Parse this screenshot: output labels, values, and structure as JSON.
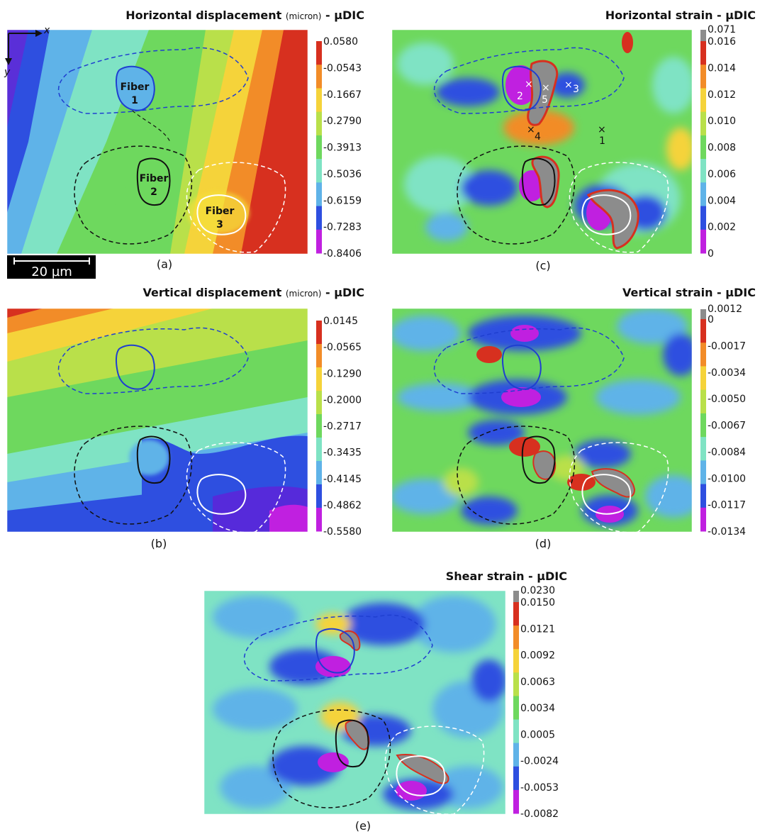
{
  "panels": [
    {
      "id": "a",
      "title_main": "Horizontal displacement ",
      "title_unit": "(micron)",
      "title_suffix": " - µDIC",
      "caption": "(a)",
      "colorbar_ticks": [
        "0.0580",
        "-0.0543",
        "-0.1667",
        "-0.2790",
        "-0.3913",
        "-0.5036",
        "-0.6159",
        "-0.7283",
        "-0.8406"
      ],
      "colorbar_colors": [
        "#d7301f",
        "#f28c28",
        "#f5d33a",
        "#b9e04a",
        "#6ed85e",
        "#7fe3c4",
        "#5fb3e8",
        "#2e4fe0",
        "#c020e0"
      ],
      "fiber_labels": [
        {
          "name": "Fiber",
          "num": "1"
        },
        {
          "name": "Fiber",
          "num": "2"
        },
        {
          "name": "Fiber",
          "num": "3"
        }
      ],
      "axis_x": "x",
      "axis_y": "y",
      "scale_bar": "20 µm"
    },
    {
      "id": "b",
      "title_main": "Vertical displacement ",
      "title_unit": "(micron)",
      "title_suffix": " - µDIC",
      "caption": "(b)",
      "colorbar_ticks": [
        "0.0145",
        "-0.0565",
        "-0.1290",
        "-0.2000",
        "-0.2717",
        "-0.3435",
        "-0.4145",
        "-0.4862",
        "-0.5580"
      ],
      "colorbar_colors": [
        "#d7301f",
        "#f28c28",
        "#f5d33a",
        "#b9e04a",
        "#6ed85e",
        "#7fe3c4",
        "#5fb3e8",
        "#2e4fe0",
        "#c020e0"
      ]
    },
    {
      "id": "c",
      "title_main": "Horizontal strain",
      "title_suffix": " - µDIC",
      "caption": "(c)",
      "colorbar_top": "0.071",
      "colorbar_ticks": [
        "0.016",
        "0.014",
        "0.012",
        "0.010",
        "0.008",
        "0.006",
        "0.004",
        "0.002",
        "0"
      ],
      "colorbar_colors": [
        "#d7301f",
        "#f28c28",
        "#f5d33a",
        "#b9e04a",
        "#6ed85e",
        "#7fe3c4",
        "#5fb3e8",
        "#2e4fe0",
        "#c020e0"
      ],
      "point_labels": [
        "2",
        "5",
        "3",
        "4",
        "1"
      ]
    },
    {
      "id": "d",
      "title_main": "Vertical strain",
      "title_suffix": " - µDIC",
      "caption": "(d)",
      "colorbar_top": "0.0012",
      "colorbar_ticks": [
        "0",
        "-0.0017",
        "-0.0034",
        "-0.0050",
        "-0.0067",
        "-0.0084",
        "-0.0100",
        "-0.0117",
        "-0.0134"
      ],
      "colorbar_colors": [
        "#d7301f",
        "#f28c28",
        "#f5d33a",
        "#b9e04a",
        "#6ed85e",
        "#7fe3c4",
        "#5fb3e8",
        "#2e4fe0",
        "#c020e0"
      ]
    },
    {
      "id": "e",
      "title_main": "Shear strain",
      "title_suffix": " - µDIC",
      "caption": "(e)",
      "colorbar_top": "0.0230",
      "colorbar_ticks": [
        "0.0150",
        "0.0121",
        "0.0092",
        "0.0063",
        "0.0034",
        "0.0005",
        "-0.0024",
        "-0.0053",
        "-0.0082"
      ],
      "colorbar_colors": [
        "#d7301f",
        "#f28c28",
        "#f5d33a",
        "#b9e04a",
        "#6ed85e",
        "#7fe3c4",
        "#5fb3e8",
        "#2e4fe0",
        "#c020e0"
      ]
    }
  ],
  "saturation_color": "#8c8c8c",
  "outline_colors": {
    "fiber1": "#1f3fd0",
    "fiber2": "#111111",
    "fiber3": "#ffffff"
  }
}
